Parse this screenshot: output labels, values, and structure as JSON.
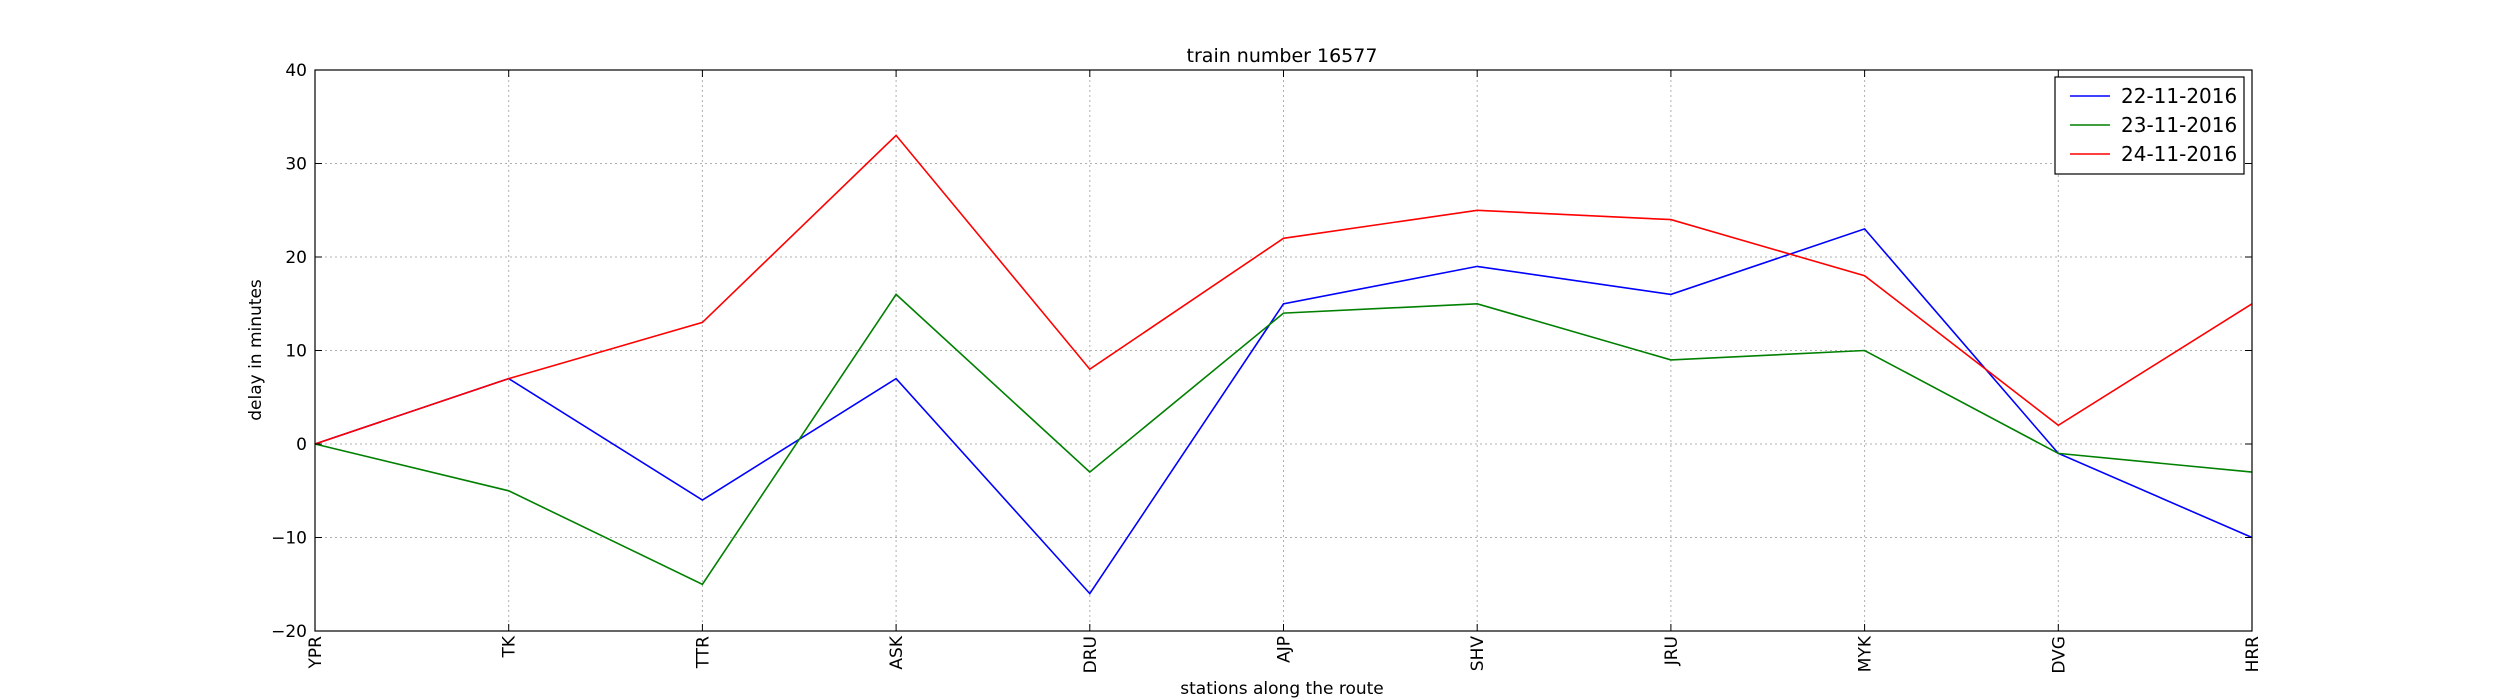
{
  "chart_data": {
    "type": "line",
    "title": "train number 16577",
    "xlabel": "stations along the route",
    "ylabel": "delay in minutes",
    "categories": [
      "YPR",
      "TK",
      "TTR",
      "ASK",
      "DRU",
      "AJP",
      "SHV",
      "JRU",
      "MYK",
      "DVG",
      "HRR"
    ],
    "ylim": [
      -20,
      40
    ],
    "yticks": [
      -20,
      -10,
      0,
      10,
      20,
      30,
      40
    ],
    "grid": true,
    "legend_position": "top-right",
    "series": [
      {
        "name": "22-11-2016",
        "color": "#0000ff",
        "values": [
          0,
          7,
          -6,
          7,
          -16,
          15,
          19,
          16,
          23,
          -1,
          -10
        ]
      },
      {
        "name": "23-11-2016",
        "color": "#008000",
        "values": [
          0,
          -5,
          -15,
          16,
          -3,
          14,
          15,
          9,
          10,
          -1,
          -3
        ]
      },
      {
        "name": "24-11-2016",
        "color": "#ff0000",
        "values": [
          0,
          7,
          13,
          33,
          8,
          22,
          25,
          24,
          18,
          2,
          15
        ]
      }
    ]
  }
}
